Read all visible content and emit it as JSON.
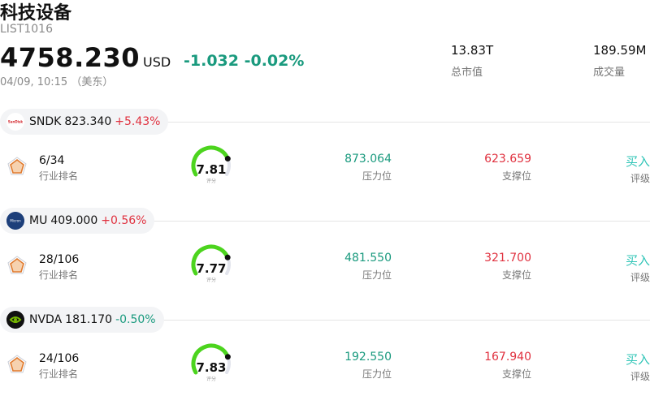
{
  "header": {
    "title": "科技设备",
    "code": "LIST1016",
    "price": "4758.230",
    "currency": "USD",
    "change": "-1.032 -0.02%",
    "time": "04/09, 10:15 （美东）",
    "market_cap_value": "13.83T",
    "market_cap_label": "总市值",
    "volume_value": "189.59M",
    "volume_label": "成交量"
  },
  "stocks": [
    {
      "symbol": "SNDK",
      "price": "823.340",
      "change": "+5.43%",
      "rank_value": "6/34",
      "rank_label": "行业排名",
      "score": "7.81",
      "score_label": "评分",
      "score_level": 0.781,
      "resistance": "873.064",
      "resistance_label": "压力位",
      "support": "623.659",
      "support_label": "支撑位",
      "rating": "买入",
      "rating_label": "评级"
    },
    {
      "symbol": "MU",
      "price": "409.000",
      "change": "+0.56%",
      "rank_value": "28/106",
      "rank_label": "行业排名",
      "score": "7.77",
      "score_label": "评分",
      "score_level": 0.777,
      "resistance": "481.550",
      "resistance_label": "压力位",
      "support": "321.700",
      "support_label": "支撑位",
      "rating": "买入",
      "rating_label": "评级"
    },
    {
      "symbol": "NVDA",
      "price": "181.170",
      "change": "-0.50%",
      "rank_value": "24/106",
      "rank_label": "行业排名",
      "score": "7.83",
      "score_label": "评分",
      "score_level": 0.783,
      "resistance": "192.550",
      "resistance_label": "压力位",
      "support": "167.940",
      "support_label": "支撑位",
      "rating": "买入",
      "rating_label": "评级"
    }
  ],
  "colors": {
    "up": "#e0313f",
    "down": "#1a9a7e",
    "gauge_fill": "#4cd41e",
    "gauge_track": "#e2e4ec",
    "rating": "#2ec4b6"
  },
  "icons": {
    "rank": "rank-pentagon-icon",
    "sndk_logo": "sandisk-logo-icon",
    "mu_logo": "micron-logo-icon",
    "nvda_logo": "nvidia-logo-icon"
  }
}
